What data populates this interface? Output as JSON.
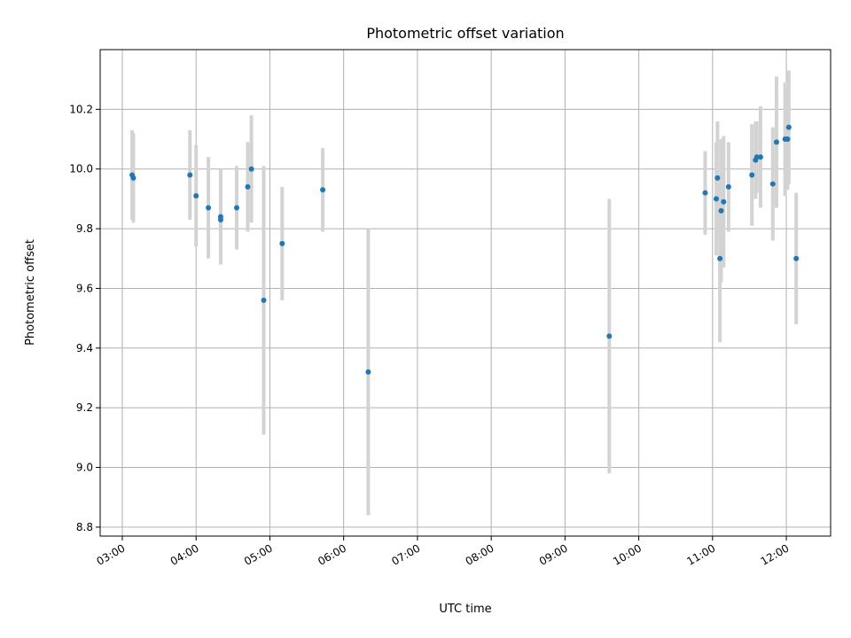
{
  "chart_data": {
    "type": "scatter",
    "title": "Photometric offset variation",
    "xlabel": "UTC time",
    "ylabel": "Photometric offset",
    "grid": true,
    "colors": {
      "point": "#1f77b4",
      "errorbar": "#d3d3d3",
      "grid": "#b0b0b0"
    },
    "xlim": [
      "02:42",
      "12:36"
    ],
    "ylim": [
      8.77,
      10.4
    ],
    "x_ticks": [
      "03:00",
      "04:00",
      "05:00",
      "06:00",
      "07:00",
      "08:00",
      "09:00",
      "10:00",
      "11:00",
      "12:00"
    ],
    "y_ticks": [
      8.8,
      9.0,
      9.2,
      9.4,
      9.6,
      9.8,
      10.0,
      10.2
    ],
    "y_tick_labels": [
      "8.8",
      "9.0",
      "9.2",
      "9.4",
      "9.6",
      "9.8",
      "10.0",
      "10.2"
    ],
    "points": [
      {
        "x": "03:08",
        "y": 9.98,
        "err": 0.15
      },
      {
        "x": "03:09",
        "y": 9.97,
        "err": 0.15
      },
      {
        "x": "03:55",
        "y": 9.98,
        "err": 0.15
      },
      {
        "x": "04:00",
        "y": 9.91,
        "err": 0.17
      },
      {
        "x": "04:10",
        "y": 9.87,
        "err": 0.17
      },
      {
        "x": "04:20",
        "y": 9.84,
        "err": 0.16
      },
      {
        "x": "04:20",
        "y": 9.83,
        "err": 0.15
      },
      {
        "x": "04:33",
        "y": 9.87,
        "err": 0.14
      },
      {
        "x": "04:42",
        "y": 9.94,
        "err": 0.15
      },
      {
        "x": "04:45",
        "y": 10.0,
        "err": 0.18
      },
      {
        "x": "04:55",
        "y": 9.56,
        "err": 0.45
      },
      {
        "x": "05:10",
        "y": 9.75,
        "err": 0.19
      },
      {
        "x": "05:43",
        "y": 9.93,
        "err": 0.14
      },
      {
        "x": "06:20",
        "y": 9.32,
        "err": 0.48
      },
      {
        "x": "09:36",
        "y": 9.44,
        "err": 0.46
      },
      {
        "x": "10:54",
        "y": 9.92,
        "err": 0.14
      },
      {
        "x": "11:03",
        "y": 9.9,
        "err": 0.19
      },
      {
        "x": "11:04",
        "y": 9.97,
        "err": 0.19
      },
      {
        "x": "11:06",
        "y": 9.7,
        "err": 0.28
      },
      {
        "x": "11:07",
        "y": 9.86,
        "err": 0.24
      },
      {
        "x": "11:09",
        "y": 9.89,
        "err": 0.22
      },
      {
        "x": "11:13",
        "y": 9.94,
        "err": 0.15
      },
      {
        "x": "11:32",
        "y": 9.98,
        "err": 0.17
      },
      {
        "x": "11:35",
        "y": 10.03,
        "err": 0.13
      },
      {
        "x": "11:36",
        "y": 10.04,
        "err": 0.12
      },
      {
        "x": "11:39",
        "y": 10.04,
        "err": 0.17
      },
      {
        "x": "11:49",
        "y": 9.95,
        "err": 0.19
      },
      {
        "x": "11:52",
        "y": 10.09,
        "err": 0.22
      },
      {
        "x": "11:59",
        "y": 10.1,
        "err": 0.19
      },
      {
        "x": "12:01",
        "y": 10.1,
        "err": 0.17
      },
      {
        "x": "12:02",
        "y": 10.14,
        "err": 0.19
      },
      {
        "x": "12:08",
        "y": 9.7,
        "err": 0.22
      }
    ]
  }
}
